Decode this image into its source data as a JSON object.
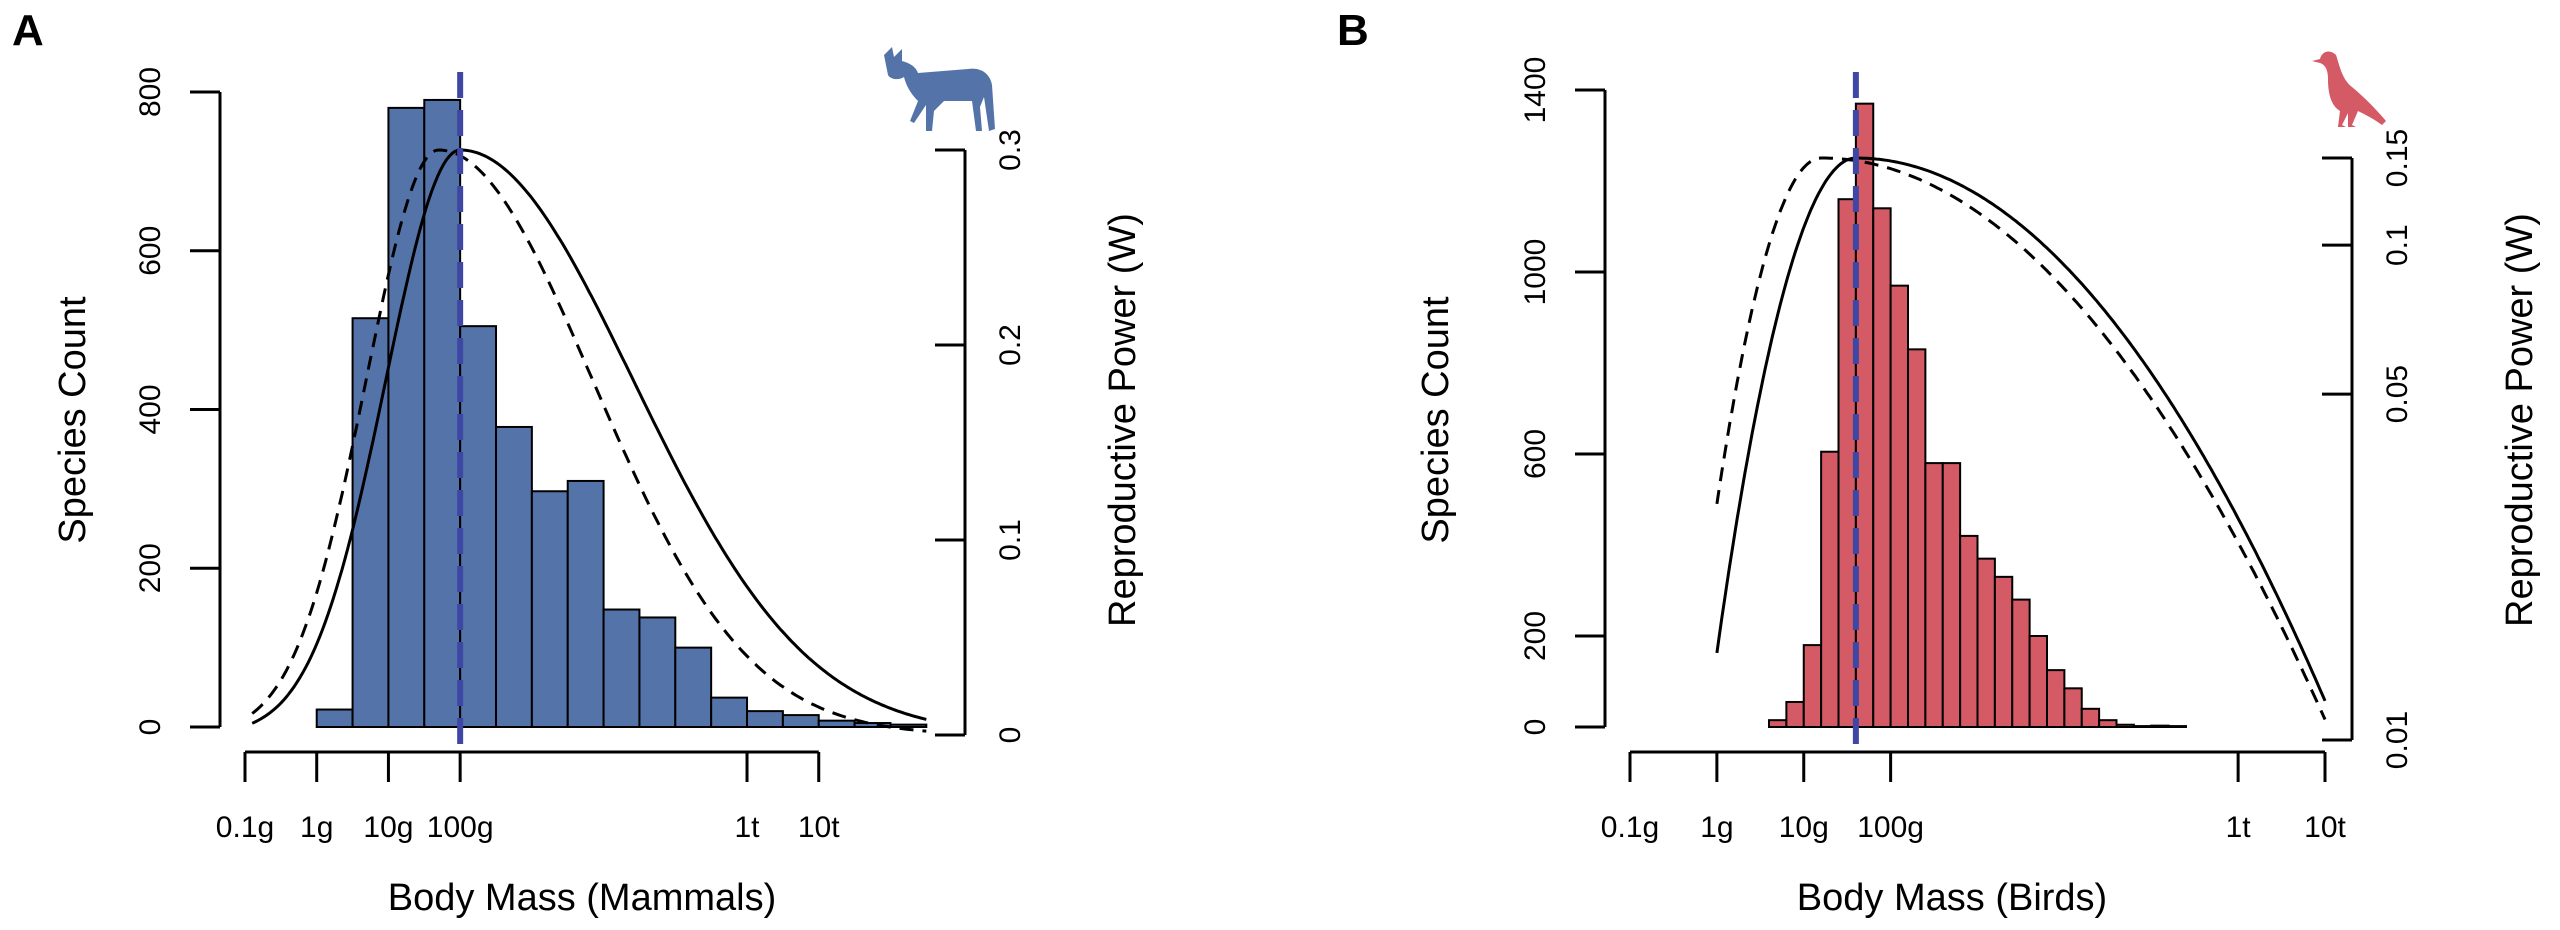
{
  "panels": [
    {
      "letter": "A"
    },
    {
      "letter": "B"
    }
  ],
  "chart_data": [
    {
      "type": "bar",
      "panel": "A",
      "title": "",
      "xlabel": "Body Mass (Mammals)",
      "ylabel": "Species Count",
      "y2label": "Reproductive Power (W)",
      "x_scale": "log10 grams",
      "x_ticks": [
        {
          "v": -1,
          "label": "0.1g"
        },
        {
          "v": 0,
          "label": "1g"
        },
        {
          "v": 1,
          "label": "10g"
        },
        {
          "v": 2,
          "label": "100g"
        },
        {
          "v": 6,
          "label": "1t"
        },
        {
          "v": 7,
          "label": "10t"
        }
      ],
      "xlim": [
        -1,
        8.9
      ],
      "ylim": [
        0,
        800
      ],
      "y_ticks": [
        0,
        200,
        400,
        600,
        800
      ],
      "y2_scale": "linear",
      "y2lim": [
        0,
        0.3
      ],
      "y2_ticks": [
        {
          "v": 0,
          "label": "0"
        },
        {
          "v": 0.1,
          "label": "0.1"
        },
        {
          "v": 0.2,
          "label": "0.2"
        },
        {
          "v": 0.3,
          "label": "0.3"
        }
      ],
      "bin_edges_log10g": [
        0,
        0.5,
        1,
        1.5,
        2,
        2.5,
        3,
        3.5,
        4,
        4.5,
        5,
        5.5,
        6,
        6.5,
        7,
        7.5,
        8,
        8.5
      ],
      "counts": [
        22,
        515,
        780,
        790,
        505,
        378,
        297,
        310,
        148,
        138,
        100,
        37,
        20,
        15,
        8,
        5,
        3
      ],
      "fill_color": "#5474a9",
      "median_log10g": 2,
      "median_color": "#3f47a4",
      "curves": [
        {
          "style": "solid",
          "peak_log10g": 2.0,
          "peak_value": 0.3,
          "x_start": -0.9,
          "x_end": 8.5,
          "y_start": 0.006,
          "y_end": 0.008
        },
        {
          "style": "dashed",
          "peak_log10g": 1.7,
          "peak_value": 0.3,
          "x_start": -0.9,
          "x_end": 8.5,
          "y_start": 0.011,
          "y_end": 0.002
        }
      ],
      "silhouette": "donkey-icon",
      "silhouette_color": "#5474a9"
    },
    {
      "type": "bar",
      "panel": "B",
      "title": "",
      "xlabel": "Body Mass (Birds)",
      "ylabel": "Species Count",
      "y2label": "Reproductive Power (W)",
      "x_scale": "log10 grams",
      "x_ticks": [
        {
          "v": -1,
          "label": "0.1g"
        },
        {
          "v": 0,
          "label": "1g"
        },
        {
          "v": 1,
          "label": "10g"
        },
        {
          "v": 2,
          "label": "100g"
        },
        {
          "v": 6,
          "label": "1t"
        },
        {
          "v": 7,
          "label": "10t"
        }
      ],
      "xlim": [
        -1,
        7
      ],
      "ylim": [
        0,
        1400
      ],
      "y_ticks": [
        0,
        200,
        600,
        1000,
        1400
      ],
      "y2_scale": "log",
      "y2lim": [
        0.01,
        0.15
      ],
      "y2_ticks": [
        {
          "v": 0.01,
          "label": "0.01"
        },
        {
          "v": 0.05,
          "label": "0.05"
        },
        {
          "v": 0.1,
          "label": "0.1"
        },
        {
          "v": 0.15,
          "label": "0.15"
        }
      ],
      "bin_edges_log10g": [
        0.6,
        0.8,
        1.0,
        1.2,
        1.4,
        1.6,
        1.8,
        2.0,
        2.2,
        2.4,
        2.6,
        2.8,
        3.0,
        3.2,
        3.4,
        3.6,
        3.8,
        4.0,
        4.2,
        4.4,
        4.6,
        4.8,
        5.0,
        5.2,
        5.4
      ],
      "counts": [
        15,
        55,
        180,
        605,
        1160,
        1370,
        1140,
        970,
        830,
        580,
        580,
        420,
        370,
        330,
        280,
        200,
        125,
        85,
        40,
        15,
        5,
        2,
        3,
        2
      ],
      "fill_color": "#d45a65",
      "median_log10g": 1.6,
      "median_color": "#3f47a4",
      "curves": [
        {
          "style": "solid",
          "peak_log10g": 1.6,
          "peak_value": 0.15,
          "x_start": 0,
          "x_end": 7,
          "y_start": 0.015,
          "y_end": 0.012
        },
        {
          "style": "dashed",
          "peak_log10g": 1.2,
          "peak_value": 0.15,
          "x_start": 0,
          "x_end": 7,
          "y_start": 0.03,
          "y_end": 0.011
        }
      ],
      "silhouette": "pigeon-icon",
      "silhouette_color": "#d45a65"
    }
  ]
}
